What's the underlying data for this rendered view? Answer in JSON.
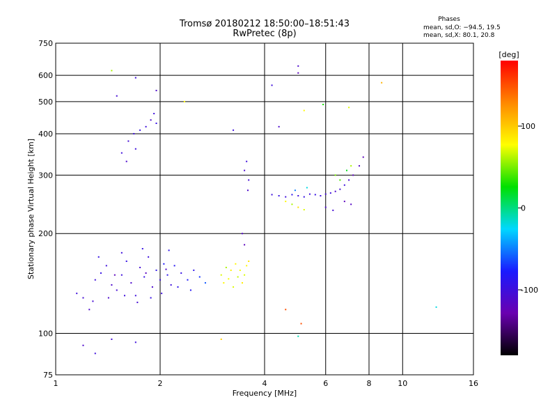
{
  "chart_data": {
    "type": "scatter",
    "title": "Tromsø 20180212 18:50:00–18:51:43",
    "subtitle": "RwPretec (8p)",
    "xlabel": "Frequency [MHz]",
    "ylabel": "Stationary phase Virtual Height [km]",
    "x_scale": "log",
    "y_scale": "log",
    "xlim": [
      1,
      16
    ],
    "ylim": [
      75,
      750
    ],
    "x_ticks": [
      1,
      2,
      4,
      6,
      8,
      10,
      16
    ],
    "y_ticks": [
      75,
      100,
      200,
      300,
      400,
      500,
      600,
      750
    ],
    "grid": true,
    "info": {
      "header": "Phases",
      "line_o": "mean, sd,O: −94.5, 19.5",
      "line_x": "mean, sd,X:  80.1, 20.8"
    },
    "colorbar": {
      "label": "[deg]",
      "ticks": [
        100,
        0,
        -100
      ],
      "range": [
        -180,
        180
      ],
      "colors": [
        "#000000",
        "#6a00b0",
        "#1a1aff",
        "#00d8ff",
        "#00e000",
        "#ffff00",
        "#ff8800",
        "#ff0000"
      ]
    },
    "series": [
      {
        "points": [
          [
            1.2,
            128,
            -105
          ],
          [
            1.25,
            118,
            -110
          ],
          [
            1.3,
            145,
            -100
          ],
          [
            1.35,
            152,
            -95
          ],
          [
            1.4,
            160,
            -100
          ],
          [
            1.45,
            140,
            -110
          ],
          [
            1.5,
            135,
            -105
          ],
          [
            1.55,
            150,
            -100
          ],
          [
            1.6,
            165,
            -95
          ],
          [
            1.65,
            142,
            -110
          ],
          [
            1.7,
            130,
            -100
          ],
          [
            1.75,
            158,
            -105
          ],
          [
            1.8,
            148,
            -95
          ],
          [
            1.85,
            170,
            -100
          ],
          [
            1.9,
            138,
            -110
          ],
          [
            1.95,
            155,
            -90
          ],
          [
            2.0,
            145,
            -100
          ],
          [
            2.05,
            162,
            -80
          ],
          [
            2.1,
            150,
            -90
          ],
          [
            2.15,
            140,
            -100
          ],
          [
            2.2,
            160,
            -85
          ],
          [
            2.3,
            152,
            -95
          ],
          [
            2.4,
            145,
            -80
          ],
          [
            2.5,
            155,
            -90
          ],
          [
            2.6,
            148,
            -70
          ],
          [
            2.7,
            142,
            -60
          ],
          [
            1.15,
            132,
            -100
          ],
          [
            1.28,
            125,
            -105
          ],
          [
            1.42,
            128,
            -110
          ],
          [
            1.58,
            130,
            -100
          ],
          [
            1.72,
            124,
            -105
          ],
          [
            1.88,
            128,
            -95
          ],
          [
            2.02,
            132,
            -100
          ],
          [
            2.25,
            138,
            -90
          ],
          [
            2.45,
            135,
            -85
          ],
          [
            1.33,
            170,
            -95
          ],
          [
            1.55,
            175,
            -100
          ],
          [
            1.78,
            180,
            -95
          ],
          [
            2.12,
            178,
            -90
          ],
          [
            1.48,
            150,
            -120
          ],
          [
            1.82,
            152,
            -118
          ],
          [
            2.08,
            156,
            -112
          ],
          [
            3.0,
            150,
            70
          ],
          [
            3.05,
            142,
            80
          ],
          [
            3.1,
            158,
            60
          ],
          [
            3.15,
            146,
            75
          ],
          [
            3.2,
            155,
            85
          ],
          [
            3.25,
            138,
            70
          ],
          [
            3.3,
            162,
            80
          ],
          [
            3.35,
            148,
            65
          ],
          [
            3.4,
            155,
            75
          ],
          [
            3.45,
            142,
            85
          ],
          [
            3.5,
            150,
            70
          ],
          [
            3.55,
            160,
            80
          ],
          [
            3.6,
            165,
            90
          ],
          [
            1.55,
            350,
            -100
          ],
          [
            1.62,
            380,
            -105
          ],
          [
            1.68,
            400,
            -100
          ],
          [
            1.75,
            410,
            -95
          ],
          [
            1.82,
            420,
            -100
          ],
          [
            1.88,
            440,
            -110
          ],
          [
            1.92,
            460,
            -100
          ],
          [
            1.95,
            430,
            -95
          ],
          [
            1.6,
            330,
            -110
          ],
          [
            1.7,
            360,
            -100
          ],
          [
            3.5,
            310,
            -110
          ],
          [
            3.55,
            330,
            -100
          ],
          [
            3.6,
            290,
            -105
          ],
          [
            3.58,
            270,
            -110
          ],
          [
            3.45,
            200,
            -115
          ],
          [
            3.5,
            185,
            -120
          ],
          [
            4.2,
            262,
            -100
          ],
          [
            4.4,
            260,
            -95
          ],
          [
            4.6,
            258,
            -100
          ],
          [
            4.8,
            262,
            -90
          ],
          [
            5.0,
            260,
            -100
          ],
          [
            5.2,
            258,
            -95
          ],
          [
            5.4,
            263,
            -100
          ],
          [
            5.6,
            262,
            -95
          ],
          [
            5.8,
            260,
            -100
          ],
          [
            6.0,
            263,
            -105
          ],
          [
            6.2,
            265,
            -100
          ],
          [
            6.4,
            268,
            -110
          ],
          [
            6.6,
            272,
            -105
          ],
          [
            6.8,
            280,
            -100
          ],
          [
            7.0,
            290,
            -110
          ],
          [
            7.2,
            300,
            -120
          ],
          [
            7.5,
            320,
            -115
          ],
          [
            7.7,
            340,
            -120
          ],
          [
            4.6,
            250,
            80
          ],
          [
            4.8,
            245,
            60
          ],
          [
            5.0,
            240,
            90
          ],
          [
            5.2,
            236,
            70
          ],
          [
            4.9,
            270,
            -50
          ],
          [
            5.3,
            275,
            -20
          ],
          [
            6.0,
            240,
            -110
          ],
          [
            6.3,
            235,
            -105
          ],
          [
            6.8,
            250,
            -120
          ],
          [
            7.1,
            245,
            -115
          ],
          [
            6.6,
            290,
            40
          ],
          [
            6.9,
            310,
            20
          ],
          [
            7.1,
            320,
            60
          ],
          [
            6.4,
            300,
            50
          ],
          [
            1.45,
            620,
            60
          ],
          [
            1.7,
            590,
            -100
          ],
          [
            1.5,
            520,
            -105
          ],
          [
            1.95,
            540,
            -110
          ],
          [
            2.35,
            500,
            80
          ],
          [
            4.2,
            560,
            -100
          ],
          [
            5.0,
            640,
            -110
          ],
          [
            5.0,
            610,
            -120
          ],
          [
            5.2,
            470,
            80
          ],
          [
            5.9,
            490,
            30
          ],
          [
            7.0,
            480,
            70
          ],
          [
            8.7,
            570,
            110
          ],
          [
            4.4,
            420,
            -110
          ],
          [
            3.25,
            410,
            -100
          ],
          [
            12.5,
            120,
            -20
          ],
          [
            5.0,
            98,
            -10
          ],
          [
            5.1,
            107,
            150
          ],
          [
            4.6,
            118,
            150
          ],
          [
            1.2,
            92,
            -110
          ],
          [
            1.3,
            87,
            -100
          ],
          [
            1.45,
            96,
            -105
          ],
          [
            1.7,
            94,
            -100
          ],
          [
            3.0,
            96,
            100
          ]
        ]
      }
    ]
  }
}
